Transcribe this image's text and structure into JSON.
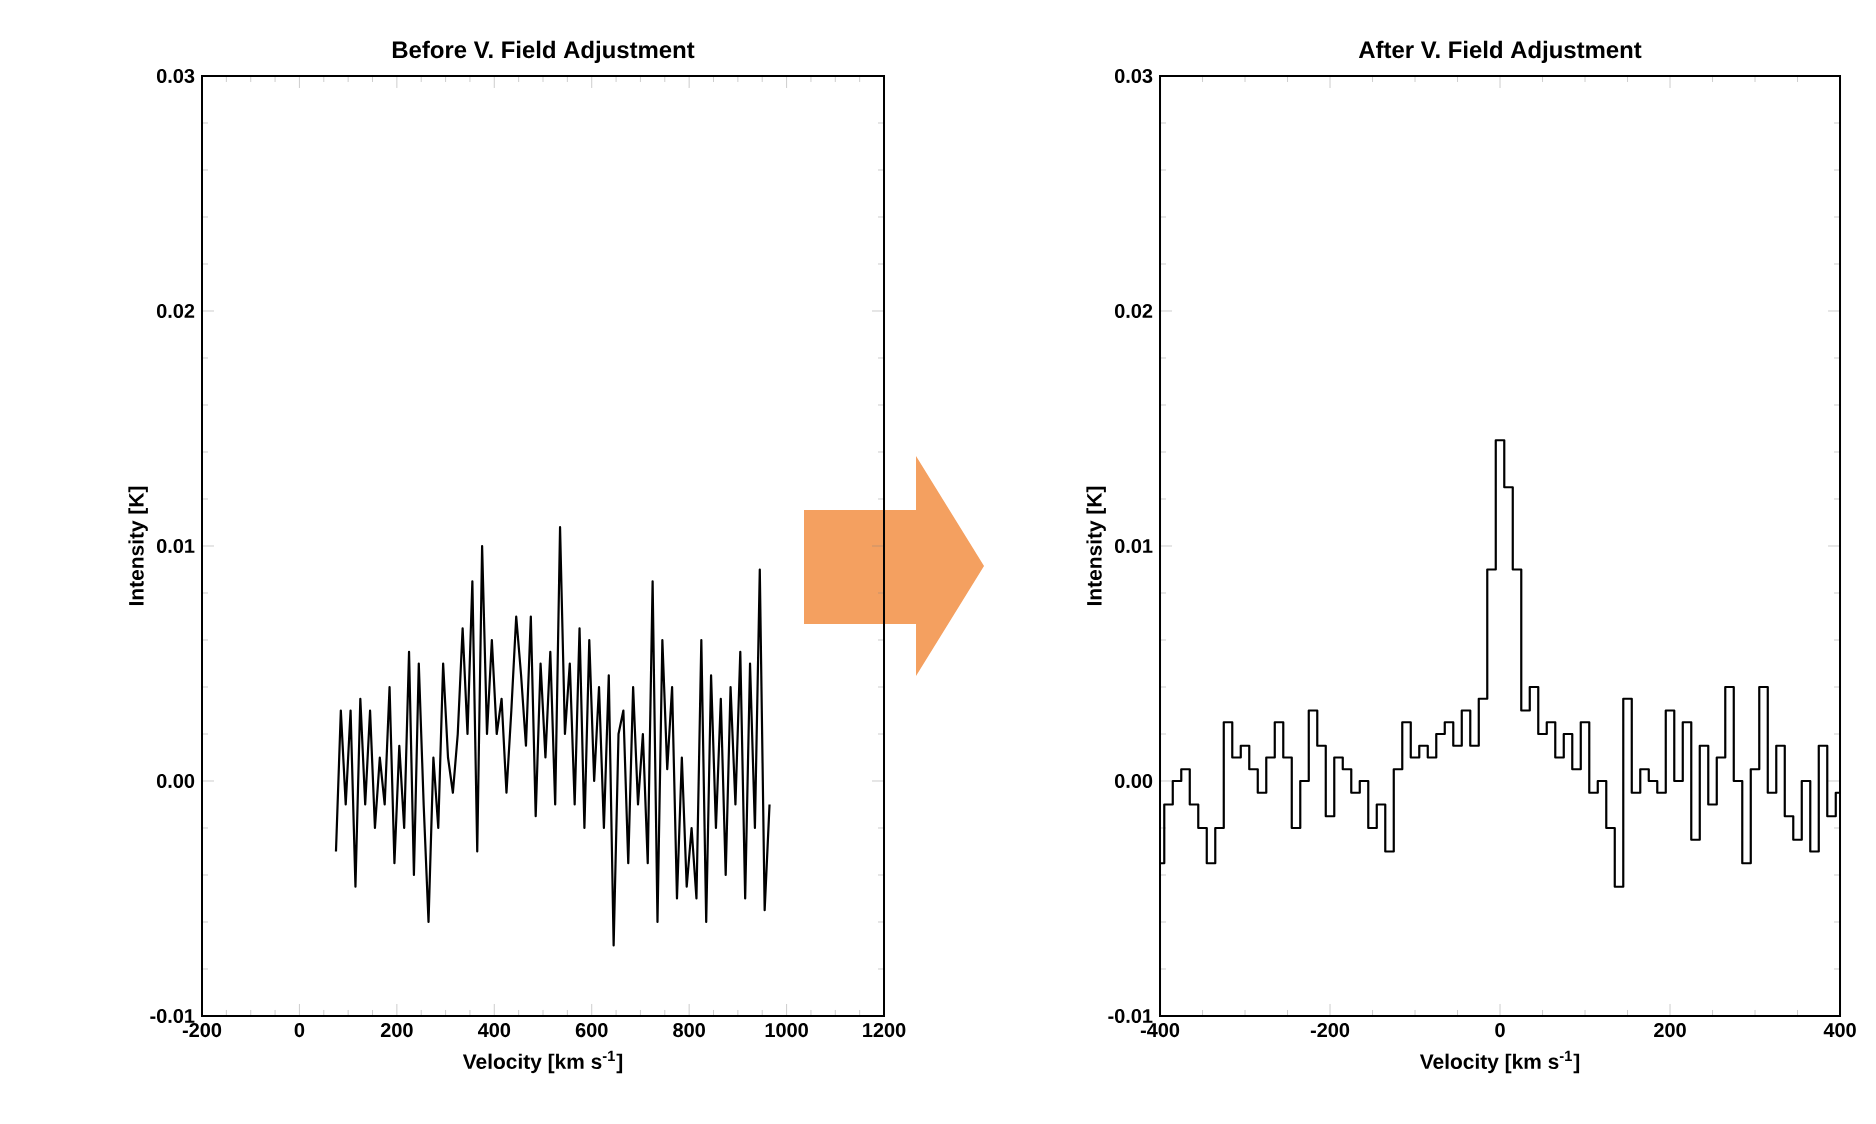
{
  "chart_data": [
    {
      "type": "line",
      "title": "Before V. Field Adjustment",
      "xlabel": "Velocity [km s$^{-1}$]",
      "ylabel": "Intensity [K]",
      "color": "#000000",
      "x": [
        75,
        85,
        95,
        105,
        115,
        125,
        135,
        145,
        155,
        165,
        175,
        185,
        195,
        205,
        215,
        225,
        235,
        245,
        255,
        265,
        275,
        285,
        295,
        305,
        315,
        325,
        335,
        345,
        355,
        365,
        375,
        385,
        395,
        405,
        415,
        425,
        435,
        445,
        455,
        465,
        475,
        485,
        495,
        505,
        515,
        525,
        535,
        545,
        555,
        565,
        575,
        585,
        595,
        605,
        615,
        625,
        635,
        645,
        655,
        665,
        675,
        685,
        695,
        705,
        715,
        725,
        735,
        745,
        755,
        765,
        775,
        785,
        795,
        805,
        815,
        825,
        835,
        845,
        855,
        865,
        875,
        885,
        895,
        905,
        915,
        925,
        935,
        945,
        955,
        965
      ],
      "values": [
        -0.003,
        0.003,
        -0.001,
        0.003,
        -0.0045,
        0.0035,
        -0.001,
        0.003,
        -0.002,
        0.001,
        -0.001,
        0.004,
        -0.0035,
        0.0015,
        -0.002,
        0.0055,
        -0.004,
        0.005,
        -0.001,
        -0.006,
        0.001,
        -0.002,
        0.005,
        0.001,
        -0.0005,
        0.002,
        0.0065,
        0.002,
        0.0085,
        -0.003,
        0.01,
        0.002,
        0.006,
        0.002,
        0.0035,
        -0.0005,
        0.003,
        0.007,
        0.0045,
        0.0015,
        0.007,
        -0.0015,
        0.005,
        0.001,
        0.0055,
        -0.001,
        0.0108,
        0.002,
        0.005,
        -0.001,
        0.0065,
        -0.002,
        0.006,
        0.0,
        0.004,
        -0.002,
        0.0045,
        -0.007,
        0.002,
        0.003,
        -0.0035,
        0.004,
        -0.001,
        0.002,
        -0.0035,
        0.0085,
        -0.006,
        0.006,
        0.0005,
        0.004,
        -0.005,
        0.001,
        -0.0045,
        -0.002,
        -0.005,
        0.006,
        -0.006,
        0.0045,
        -0.002,
        0.0035,
        -0.004,
        0.004,
        -0.001,
        0.0055,
        -0.005,
        0.005,
        -0.002,
        0.009,
        -0.0055,
        -0.001
      ],
      "xlim": [
        -200,
        1200
      ],
      "ylim": [
        -0.01,
        0.03
      ],
      "xticks": [
        -200,
        0,
        200,
        400,
        600,
        800,
        1000,
        1200
      ],
      "yticks": [
        -0.01,
        {
          "value": 0,
          "label": "0.00"
        },
        0.01,
        0.02,
        0.03
      ]
    },
    {
      "type": "step",
      "title": "After V. Field Adjustment",
      "xlabel": "Velocity [km s$^{-1}$]",
      "ylabel": "Intensity [K]",
      "color": "#000000",
      "x": [
        -400,
        -390,
        -380,
        -370,
        -360,
        -350,
        -340,
        -330,
        -320,
        -310,
        -300,
        -290,
        -280,
        -270,
        -260,
        -250,
        -240,
        -230,
        -220,
        -210,
        -200,
        -190,
        -180,
        -170,
        -160,
        -150,
        -140,
        -130,
        -120,
        -110,
        -100,
        -90,
        -80,
        -70,
        -60,
        -50,
        -40,
        -30,
        -20,
        -10,
        0,
        10,
        20,
        30,
        40,
        50,
        60,
        70,
        80,
        90,
        100,
        110,
        120,
        130,
        140,
        150,
        160,
        170,
        180,
        190,
        200,
        210,
        220,
        230,
        240,
        250,
        260,
        270,
        280,
        290,
        300,
        310,
        320,
        330,
        340,
        350,
        360,
        370,
        380,
        390,
        400
      ],
      "values": [
        -0.0035,
        -0.001,
        0.0,
        0.0005,
        -0.001,
        -0.002,
        -0.0035,
        -0.002,
        0.0025,
        0.001,
        0.0015,
        0.0005,
        -0.0005,
        0.001,
        0.0025,
        0.001,
        -0.002,
        0.0,
        0.003,
        0.0015,
        -0.0015,
        0.001,
        0.0005,
        -0.0005,
        0.0,
        -0.002,
        -0.001,
        -0.003,
        0.0005,
        0.0025,
        0.001,
        0.0015,
        0.001,
        0.002,
        0.0025,
        0.0015,
        0.003,
        0.0015,
        0.0035,
        0.009,
        0.0145,
        0.0125,
        0.009,
        0.003,
        0.004,
        0.002,
        0.0025,
        0.001,
        0.002,
        0.0005,
        0.0025,
        -0.0005,
        0.0,
        -0.002,
        -0.0045,
        0.0035,
        -0.0005,
        0.0005,
        0.0,
        -0.0005,
        0.003,
        0.0,
        0.0025,
        -0.0025,
        0.0015,
        -0.001,
        0.001,
        0.004,
        0.0,
        -0.0035,
        0.0005,
        0.004,
        -0.0005,
        0.0015,
        -0.0015,
        -0.0025,
        0.0,
        -0.003,
        0.0015,
        -0.0015,
        -0.0005
      ],
      "xlim": [
        -400,
        400
      ],
      "ylim": [
        -0.01,
        0.03
      ],
      "xticks": [
        -400,
        -200,
        0,
        200,
        400
      ],
      "yticks": [
        -0.01,
        {
          "value": 0,
          "label": "0.00"
        },
        0.01,
        0.02,
        0.03
      ]
    }
  ]
}
